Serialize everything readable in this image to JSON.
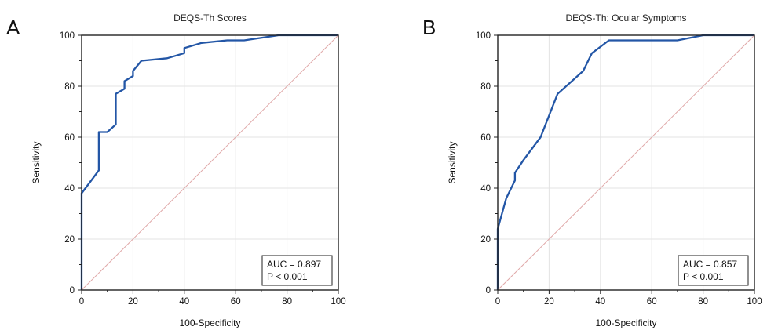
{
  "chart_data": [
    {
      "type": "line",
      "panel_label": "A",
      "title": "DEQS-Th Scores",
      "xlabel": "100-Specificity",
      "ylabel": "Sensitivity",
      "xlim": [
        0,
        100
      ],
      "ylim": [
        0,
        100
      ],
      "x_ticks": [
        0,
        20,
        40,
        60,
        80,
        100
      ],
      "y_ticks": [
        0,
        20,
        40,
        60,
        80,
        100
      ],
      "grid": true,
      "annotation": [
        "AUC = 0.897",
        "P < 0.001"
      ],
      "series": [
        {
          "role": "roc",
          "color": "#2356a6",
          "x": [
            0,
            0,
            3,
            6.7,
            6.7,
            10,
            13.3,
            13.3,
            16.7,
            16.7,
            20,
            20,
            23.3,
            33.3,
            40,
            40,
            46.7,
            56.7,
            63.3,
            76.7,
            100
          ],
          "y": [
            0,
            38,
            42,
            47,
            62,
            62,
            65,
            77,
            79,
            82,
            84,
            86,
            90,
            91,
            93,
            95,
            97,
            98,
            98,
            100,
            100
          ]
        },
        {
          "role": "reference",
          "color": "#e0a8a8",
          "x": [
            0,
            100
          ],
          "y": [
            0,
            100
          ]
        }
      ]
    },
    {
      "type": "line",
      "panel_label": "B",
      "title": "DEQS-Th: Ocular Symptoms",
      "xlabel": "100-Specificity",
      "ylabel": "Sensitivity",
      "xlim": [
        0,
        100
      ],
      "ylim": [
        0,
        100
      ],
      "x_ticks": [
        0,
        20,
        40,
        60,
        80,
        100
      ],
      "y_ticks": [
        0,
        20,
        40,
        60,
        80,
        100
      ],
      "grid": true,
      "annotation": [
        "AUC = 0.857",
        "P < 0.001"
      ],
      "series": [
        {
          "role": "roc",
          "color": "#2356a6",
          "x": [
            0,
            0,
            3.3,
            6.7,
            6.7,
            10,
            16.7,
            23.3,
            33.3,
            36.7,
            43.3,
            70,
            80,
            100
          ],
          "y": [
            0,
            24,
            36,
            43,
            46,
            51,
            60,
            77,
            86,
            93,
            98,
            98,
            100,
            100
          ]
        },
        {
          "role": "reference",
          "color": "#e0a8a8",
          "x": [
            0,
            100
          ],
          "y": [
            0,
            100
          ]
        }
      ]
    }
  ]
}
